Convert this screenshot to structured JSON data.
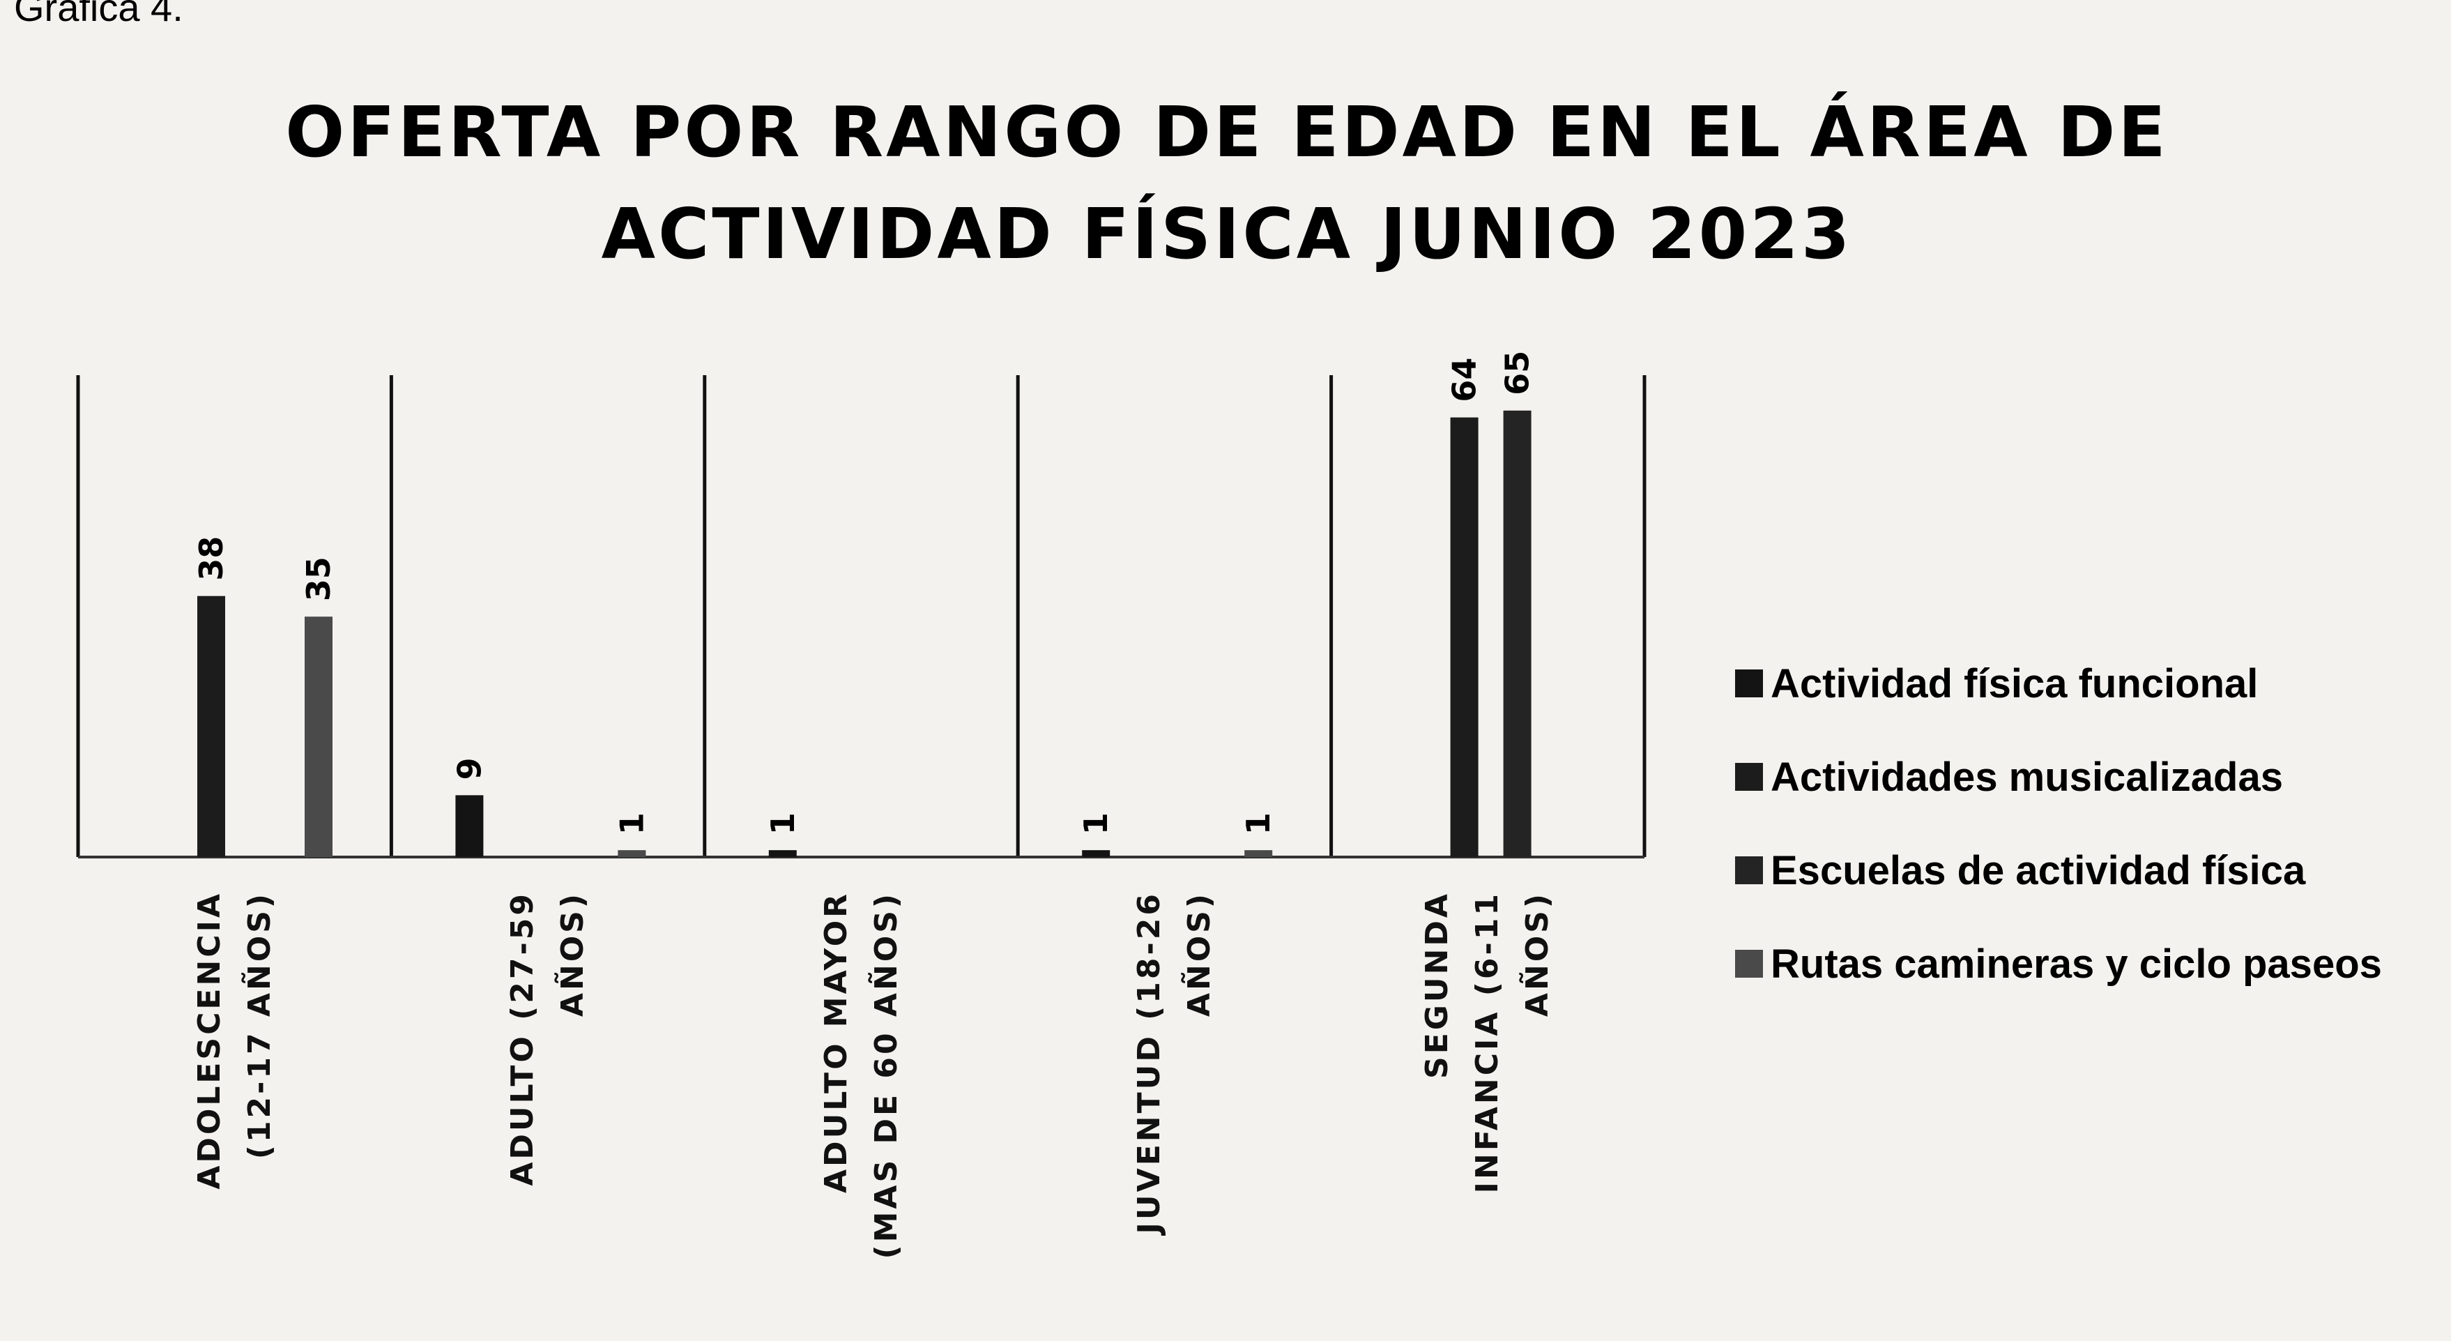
{
  "caption": "Gráfica 4.",
  "chart_data": {
    "type": "bar",
    "title": "OFERTA POR RANGO DE EDAD EN EL ÁREA DE\nACTIVIDAD FÍSICA JUNIO 2023",
    "categories": [
      "ADOLESCENCIA\n(12-17 AÑOS)",
      "ADULTO (27-59\nAÑOS)",
      "ADULTO MAYOR\n(MAS DE 60 AÑOS)",
      "JUVENTUD (18-26\nAÑOS)",
      "SEGUNDA\nINFANCIA (6-11\nAÑOS)"
    ],
    "series": [
      {
        "name": "Actividad física funcional",
        "color": "#141414",
        "values": [
          null,
          9,
          1,
          1,
          null
        ]
      },
      {
        "name": "Actividades musicalizadas",
        "color": "#1c1c1c",
        "values": [
          38,
          null,
          null,
          null,
          64
        ]
      },
      {
        "name": "Escuelas de actividad física",
        "color": "#242424",
        "values": [
          null,
          null,
          null,
          null,
          65
        ]
      },
      {
        "name": "Rutas camineras y ciclo paseos",
        "color": "#4a4a4a",
        "values": [
          35,
          1,
          null,
          1,
          null
        ]
      }
    ],
    "legend": "right"
  }
}
